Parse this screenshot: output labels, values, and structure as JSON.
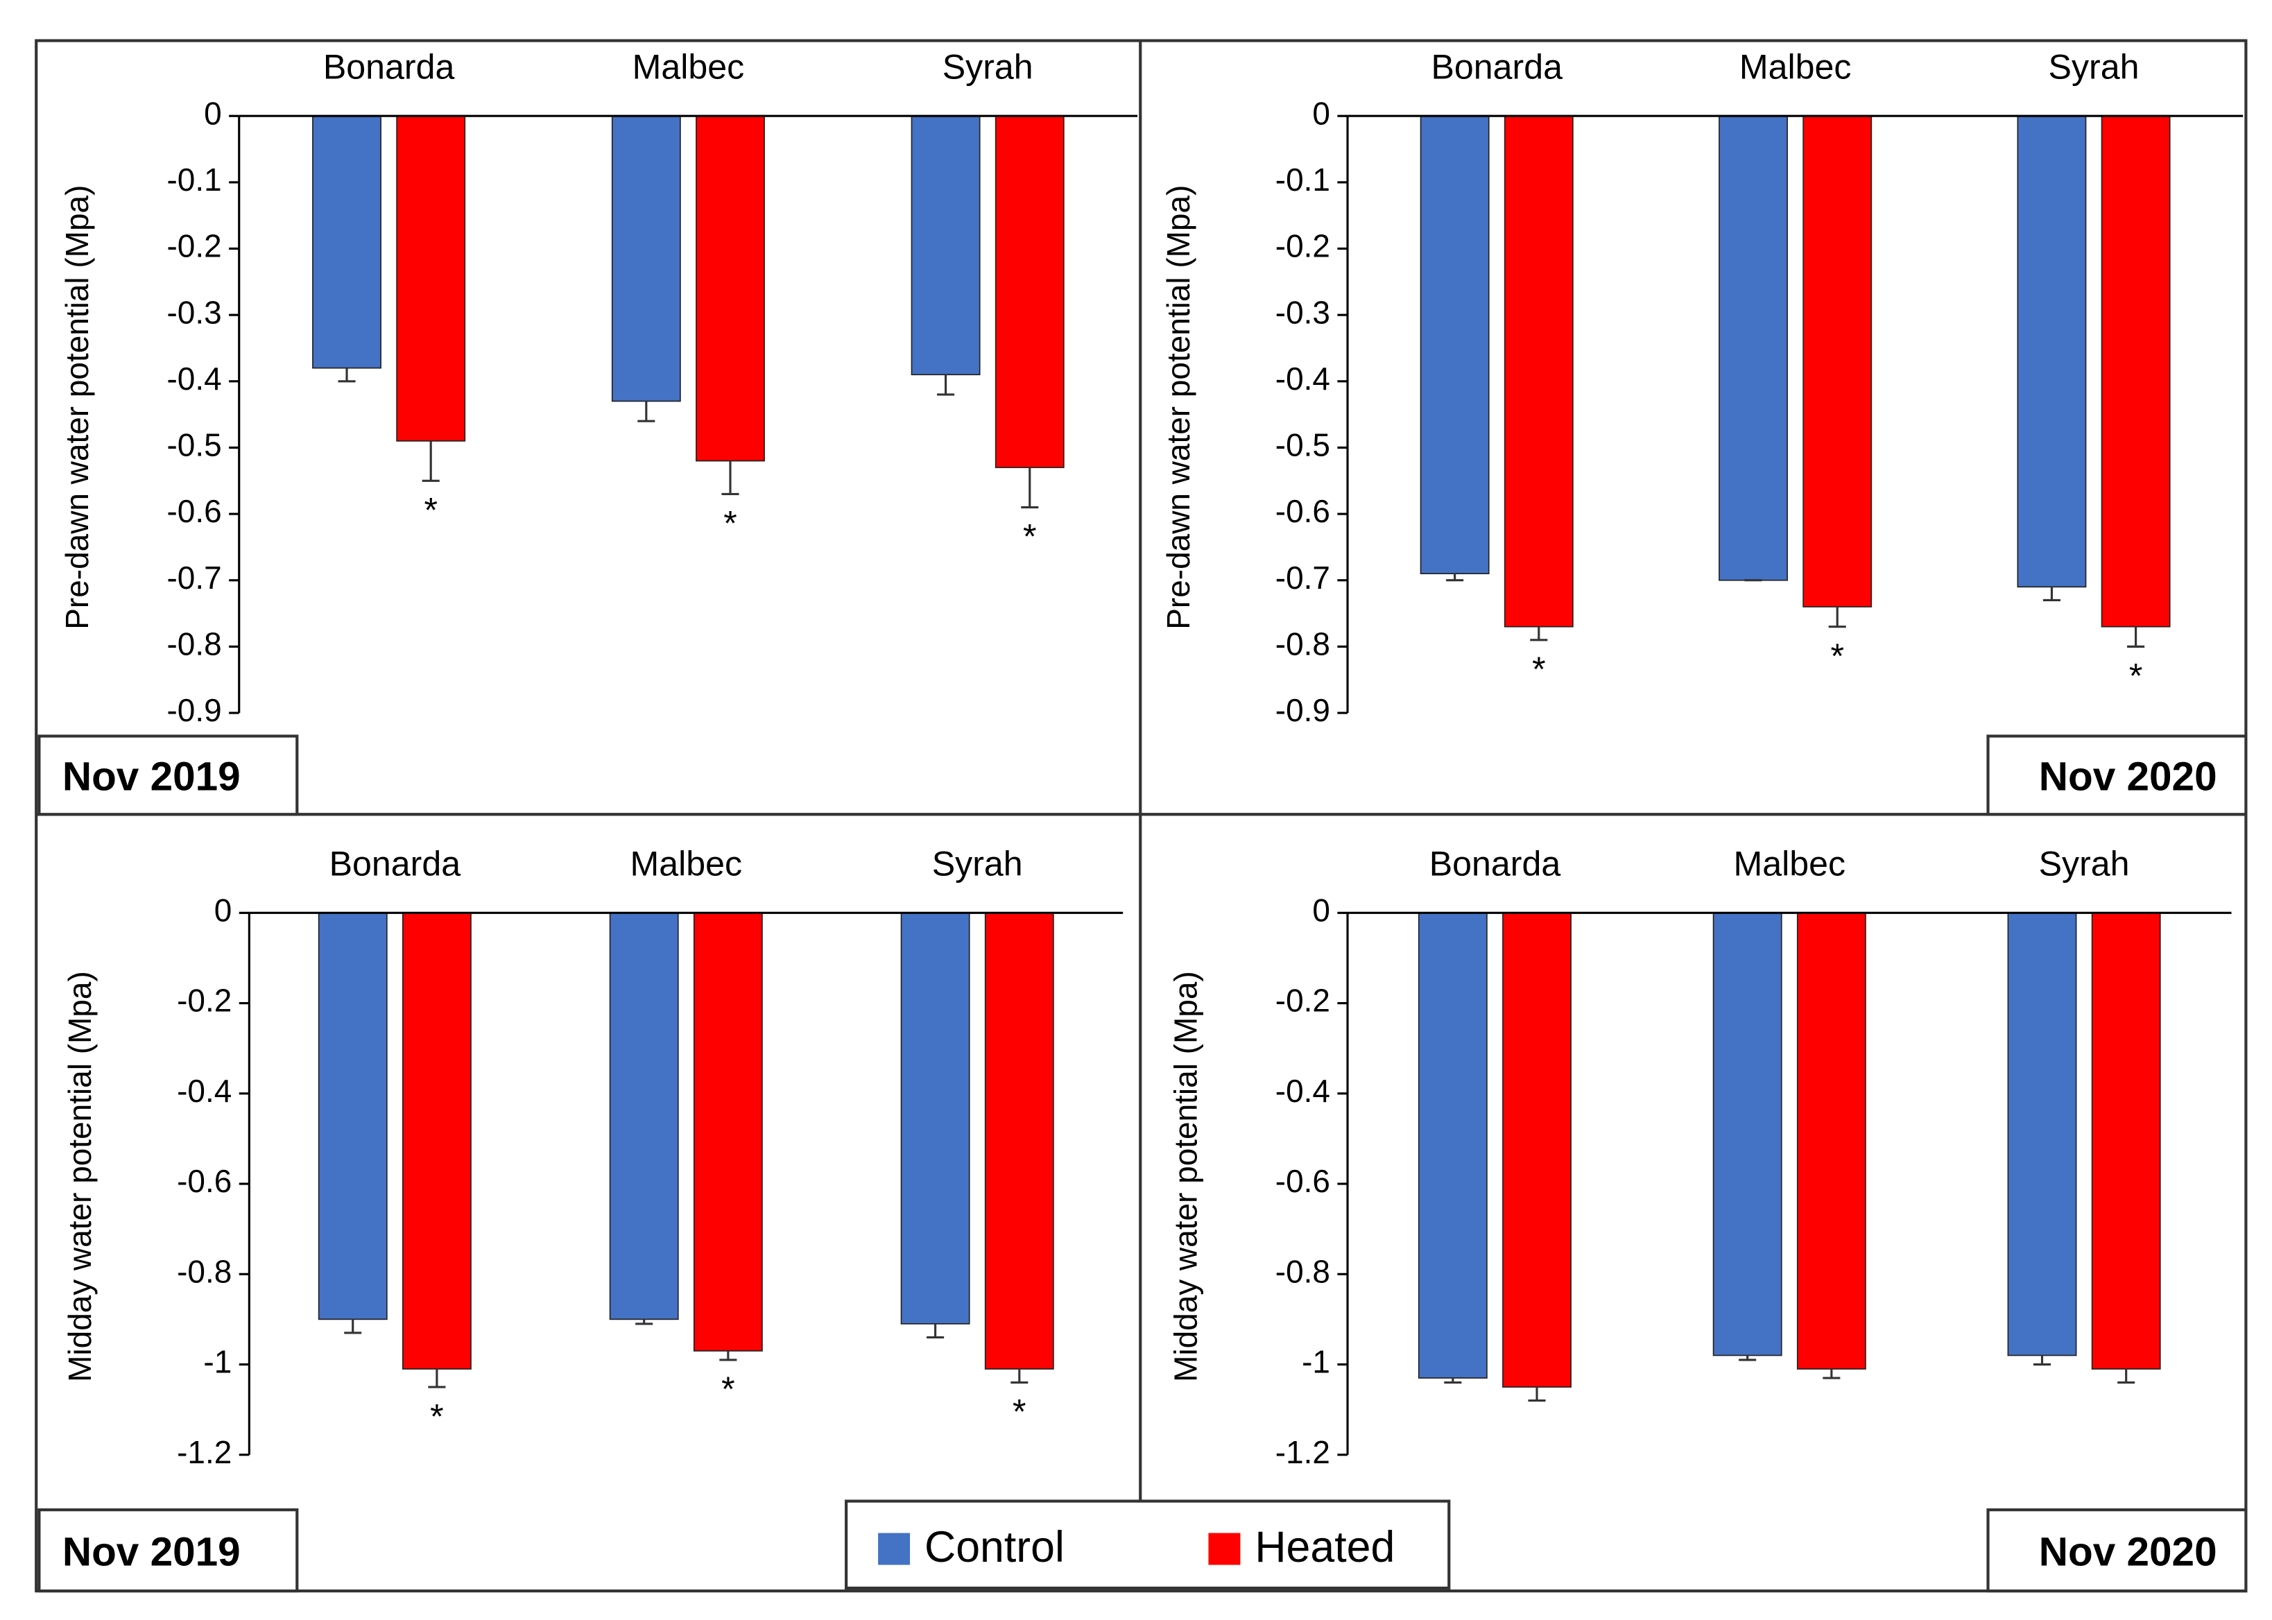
{
  "chart_data": [
    {
      "type": "bar",
      "period": "Nov 2019",
      "ylabel": "Pre-dawn water potential (Mpa)",
      "categories": [
        "Bonarda",
        "Malbec",
        "Syrah"
      ],
      "series": [
        {
          "name": "Control",
          "color": "#4472c4",
          "values": [
            -0.38,
            -0.43,
            -0.39
          ],
          "errors": [
            0.02,
            0.03,
            0.03
          ]
        },
        {
          "name": "Heated",
          "color": "#ff0000",
          "values": [
            -0.49,
            -0.52,
            -0.53
          ],
          "errors": [
            0.06,
            0.05,
            0.06
          ],
          "markers": [
            "*",
            "*",
            "*"
          ]
        }
      ],
      "ylim": [
        -0.9,
        0
      ],
      "yticks": [
        0,
        -0.1,
        -0.2,
        -0.3,
        -0.4,
        -0.5,
        -0.6,
        -0.7,
        -0.8,
        -0.9
      ]
    },
    {
      "type": "bar",
      "period": "Nov 2020",
      "ylabel": "Pre-dawn water potential (Mpa)",
      "categories": [
        "Bonarda",
        "Malbec",
        "Syrah"
      ],
      "series": [
        {
          "name": "Control",
          "color": "#4472c4",
          "values": [
            -0.69,
            -0.7,
            -0.71
          ],
          "errors": [
            0.01,
            0,
            0.02
          ]
        },
        {
          "name": "Heated",
          "color": "#ff0000",
          "values": [
            -0.77,
            -0.74,
            -0.77
          ],
          "errors": [
            0.02,
            0.03,
            0.03
          ],
          "markers": [
            "*",
            "*",
            "*"
          ]
        }
      ],
      "ylim": [
        -0.9,
        0
      ],
      "yticks": [
        0,
        -0.1,
        -0.2,
        -0.3,
        -0.4,
        -0.5,
        -0.6,
        -0.7,
        -0.8,
        -0.9
      ]
    },
    {
      "type": "bar",
      "period": "Nov 2019",
      "ylabel": "Midday water potential (Mpa)",
      "categories": [
        "Bonarda",
        "Malbec",
        "Syrah"
      ],
      "series": [
        {
          "name": "Control",
          "color": "#4472c4",
          "values": [
            -0.9,
            -0.9,
            -0.91
          ],
          "errors": [
            0.03,
            0.01,
            0.03
          ]
        },
        {
          "name": "Heated",
          "color": "#ff0000",
          "values": [
            -1.01,
            -0.97,
            -1.01
          ],
          "errors": [
            0.04,
            0.02,
            0.03
          ],
          "markers": [
            "*",
            "*",
            "*"
          ]
        }
      ],
      "ylim": [
        -1.2,
        0
      ],
      "yticks": [
        0,
        -0.2,
        -0.4,
        -0.6,
        -0.8,
        -1,
        -1.2
      ]
    },
    {
      "type": "bar",
      "period": "Nov 2020",
      "ylabel": "Midday water potential (Mpa)",
      "categories": [
        "Bonarda",
        "Malbec",
        "Syrah"
      ],
      "series": [
        {
          "name": "Control",
          "color": "#4472c4",
          "values": [
            -1.03,
            -0.98,
            -0.98
          ],
          "errors": [
            0.01,
            0.01,
            0.02
          ]
        },
        {
          "name": "Heated",
          "color": "#ff0000",
          "values": [
            -1.05,
            -1.01,
            -1.01
          ],
          "errors": [
            0.03,
            0.02,
            0.03
          ]
        }
      ],
      "ylim": [
        -1.2,
        0
      ],
      "yticks": [
        0,
        -0.2,
        -0.4,
        -0.6,
        -0.8,
        -1,
        -1.2
      ]
    }
  ]
}
